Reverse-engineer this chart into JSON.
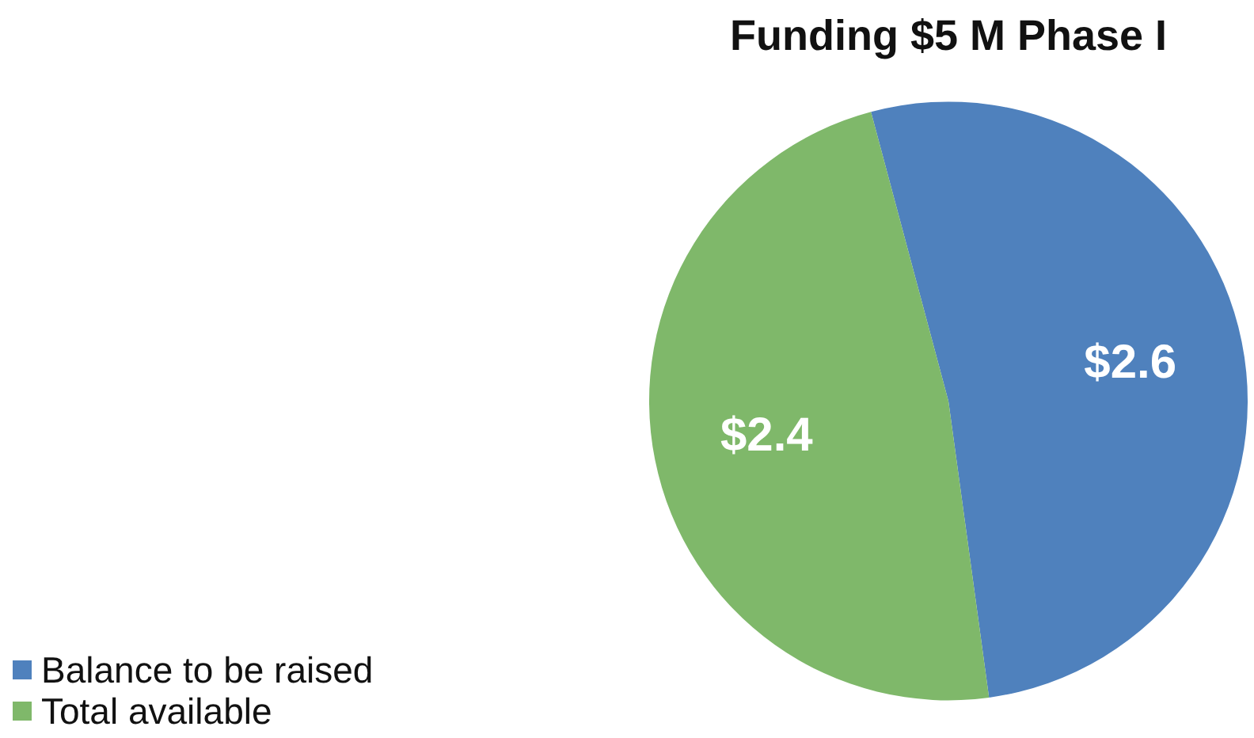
{
  "chart_data": {
    "type": "pie",
    "title": "Funding $5 M Phase I",
    "categories": [
      "Balance to be raised",
      "Total available"
    ],
    "values": [
      2.6,
      2.4
    ],
    "colors": [
      "#4f81bd",
      "#7fb86a"
    ],
    "value_labels": [
      "$2.6",
      "$2.4"
    ],
    "legend": "bottom left"
  }
}
